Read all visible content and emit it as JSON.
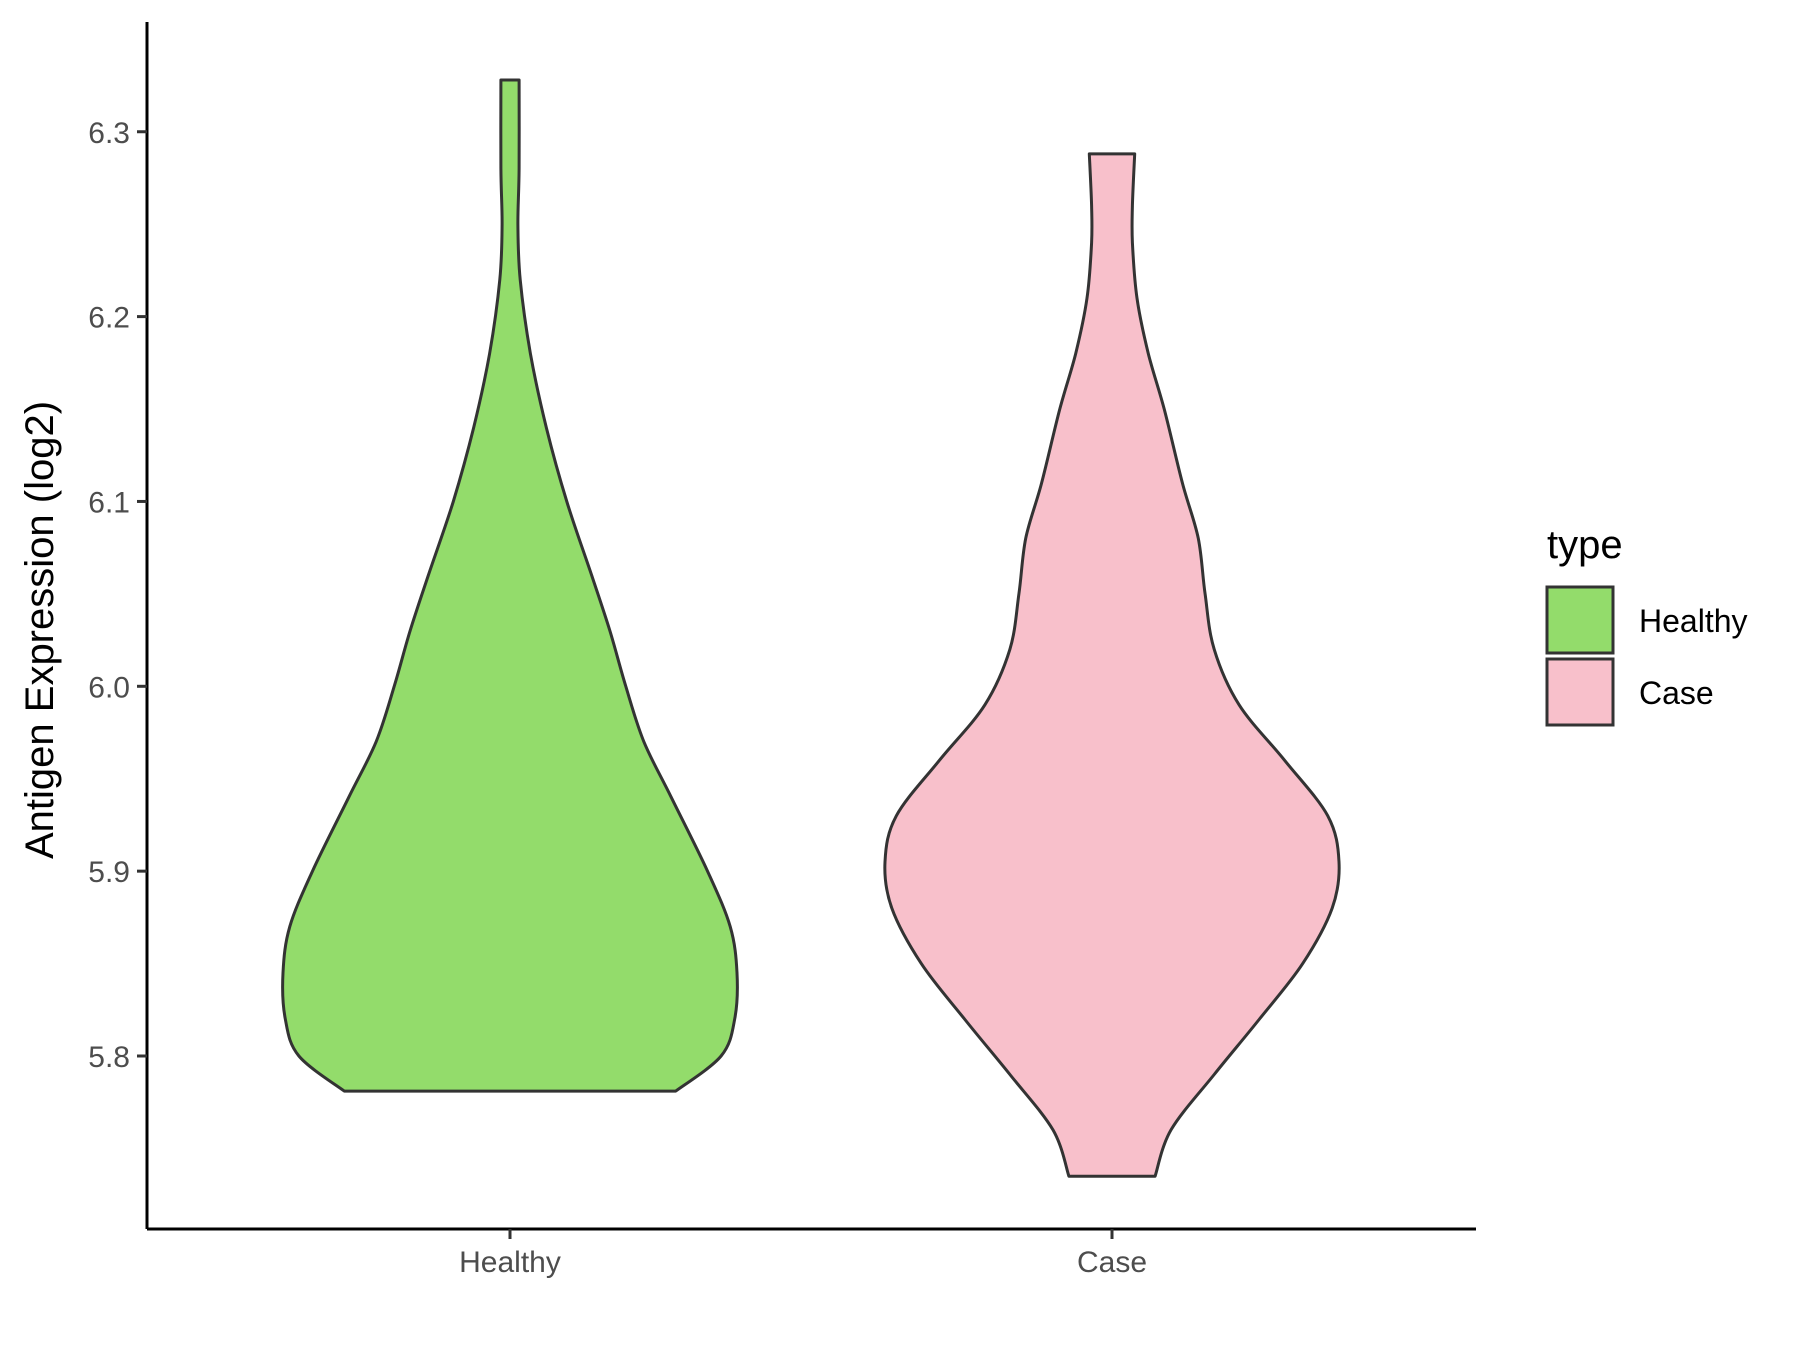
{
  "chart_data": {
    "type": "violin",
    "title": "",
    "xlabel": "",
    "ylabel": "Antigen Expression (log2)",
    "categories": [
      "Healthy",
      "Case"
    ],
    "y_ticks": [
      "5.8",
      "5.9",
      "6.0",
      "6.1",
      "6.2",
      "6.3"
    ],
    "ylim": [
      5.71,
      6.36
    ],
    "grid": false,
    "legend": {
      "title": "type",
      "position": "right",
      "entries": [
        "Healthy",
        "Case"
      ]
    },
    "series": [
      {
        "name": "Healthy",
        "color": "#93dc6b",
        "y_min": 5.781,
        "y_max": 6.328,
        "density_profile": [
          [
            5.781,
            0.73
          ],
          [
            5.8,
            0.93
          ],
          [
            5.82,
            0.99
          ],
          [
            5.845,
            1.0
          ],
          [
            5.87,
            0.97
          ],
          [
            5.9,
            0.87
          ],
          [
            5.94,
            0.71
          ],
          [
            5.97,
            0.59
          ],
          [
            6.0,
            0.51
          ],
          [
            6.03,
            0.44
          ],
          [
            6.06,
            0.36
          ],
          [
            6.1,
            0.25
          ],
          [
            6.14,
            0.16
          ],
          [
            6.18,
            0.09
          ],
          [
            6.22,
            0.045
          ],
          [
            6.25,
            0.035
          ],
          [
            6.28,
            0.04
          ],
          [
            6.328,
            0.04
          ]
        ]
      },
      {
        "name": "Case",
        "color": "#f8c0cb",
        "y_min": 5.735,
        "y_max": 6.288,
        "density_profile": [
          [
            5.735,
            0.19
          ],
          [
            5.76,
            0.26
          ],
          [
            5.79,
            0.45
          ],
          [
            5.82,
            0.65
          ],
          [
            5.85,
            0.84
          ],
          [
            5.88,
            0.97
          ],
          [
            5.905,
            1.0
          ],
          [
            5.93,
            0.95
          ],
          [
            5.96,
            0.76
          ],
          [
            5.99,
            0.56
          ],
          [
            6.02,
            0.45
          ],
          [
            6.05,
            0.41
          ],
          [
            6.08,
            0.38
          ],
          [
            6.11,
            0.31
          ],
          [
            6.15,
            0.23
          ],
          [
            6.18,
            0.16
          ],
          [
            6.21,
            0.11
          ],
          [
            6.24,
            0.09
          ],
          [
            6.26,
            0.09
          ],
          [
            6.288,
            0.1
          ]
        ]
      }
    ]
  }
}
